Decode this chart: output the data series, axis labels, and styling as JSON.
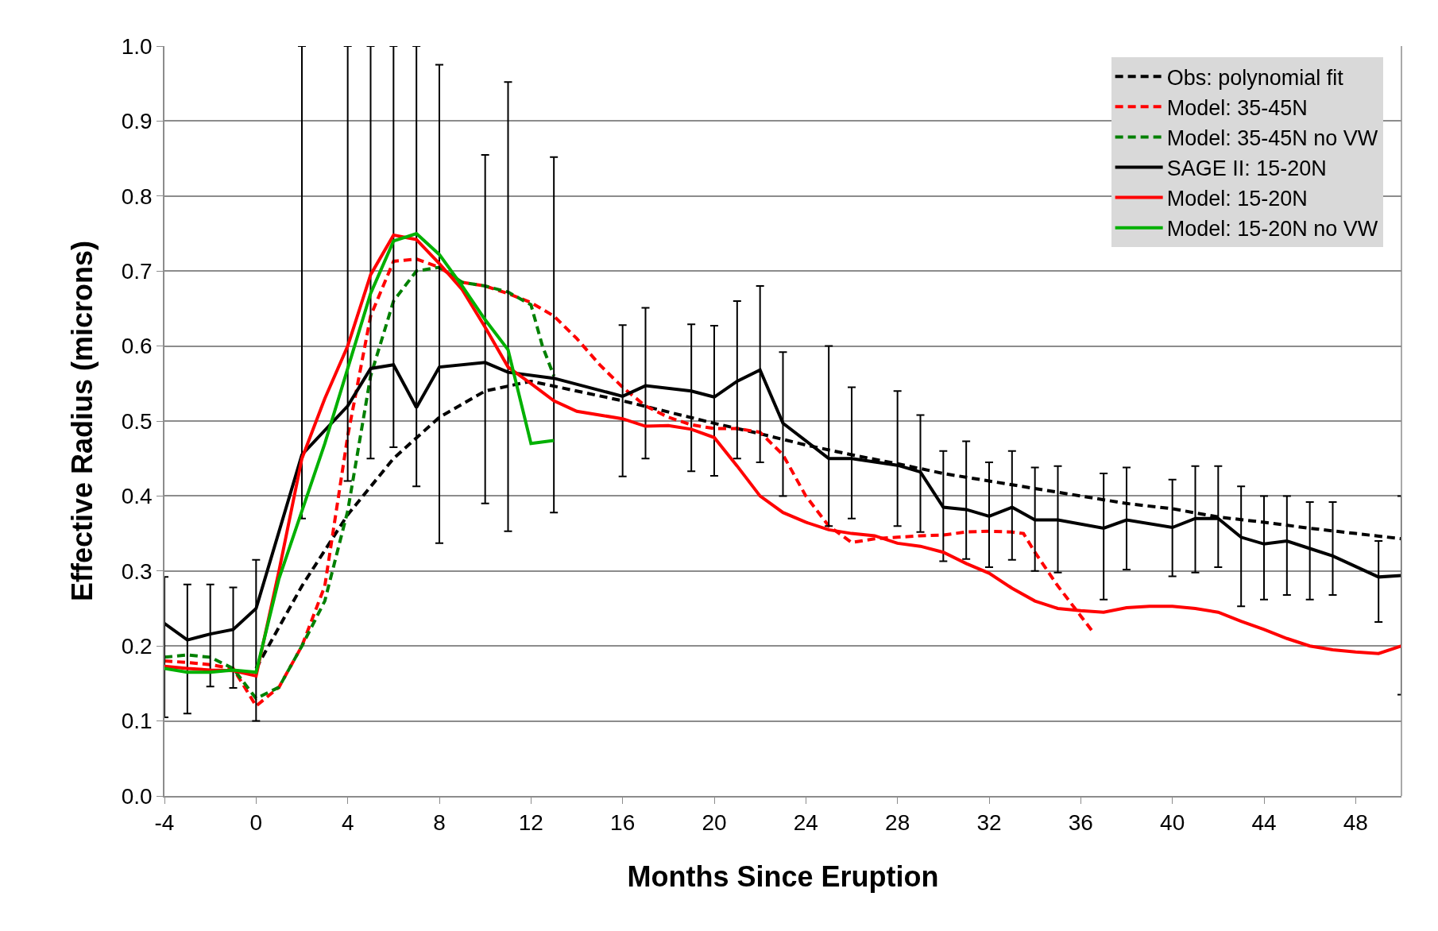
{
  "chart_data": {
    "type": "line",
    "xlabel": "Months Since Eruption",
    "ylabel": "Effective Radius (microns)",
    "xlim": [
      -4,
      50
    ],
    "xticks": [
      -4,
      0,
      4,
      8,
      12,
      16,
      20,
      24,
      28,
      32,
      36,
      40,
      44,
      48
    ],
    "ylim": [
      0,
      1.0
    ],
    "yticks": [
      {
        "value": 0,
        "label": "0.0"
      },
      0.1,
      0.2,
      0.3,
      0.4,
      0.5,
      0.6,
      0.7,
      0.8,
      0.9,
      {
        "value": 1.0,
        "label": "1.0"
      }
    ],
    "grid": "y",
    "legend": "top right",
    "marker": "none",
    "series": [
      {
        "name": "Obs: polynomial fit",
        "color": "#000000",
        "line_style": "dashed",
        "x": [
          0,
          2,
          4,
          6,
          8,
          10,
          12,
          14,
          16,
          18,
          20,
          22,
          24,
          26,
          28,
          30,
          32,
          34,
          36,
          38,
          40,
          42,
          44,
          46,
          48,
          50
        ],
        "values": [
          0.17,
          0.28,
          0.375,
          0.45,
          0.505,
          0.54,
          0.553,
          0.54,
          0.527,
          0.512,
          0.497,
          0.483,
          0.468,
          0.455,
          0.443,
          0.43,
          0.42,
          0.41,
          0.4,
          0.39,
          0.383,
          0.372,
          0.365,
          0.357,
          0.35,
          0.343
        ]
      },
      {
        "name": "Model: 35-45N",
        "color": "#ff0000",
        "line_style": "dashed",
        "x": [
          -4,
          -3,
          -2,
          -1,
          0,
          1,
          2,
          3,
          4,
          5,
          6,
          7,
          8,
          9,
          10,
          11,
          12,
          13,
          14,
          15,
          16,
          17,
          18,
          19,
          20,
          21,
          22,
          23,
          24,
          25,
          26,
          27,
          28,
          29,
          30,
          31,
          32,
          33,
          33.5,
          34,
          35,
          36,
          36.5
        ],
        "values": [
          0.18,
          0.178,
          0.175,
          0.17,
          0.12,
          0.145,
          0.2,
          0.28,
          0.48,
          0.64,
          0.713,
          0.716,
          0.705,
          0.685,
          0.68,
          0.67,
          0.658,
          0.64,
          0.61,
          0.575,
          0.545,
          0.52,
          0.505,
          0.495,
          0.49,
          0.49,
          0.485,
          0.455,
          0.4,
          0.36,
          0.338,
          0.343,
          0.345,
          0.347,
          0.348,
          0.352,
          0.353,
          0.352,
          0.35,
          0.325,
          0.28,
          0.24,
          0.22
        ]
      },
      {
        "name": "Model: 35-45N no VW",
        "color": "#008000",
        "line_style": "dashed",
        "x": [
          -4,
          -3,
          -2,
          -1,
          0,
          1,
          2,
          3,
          4,
          5,
          6,
          7,
          8,
          9,
          10,
          11,
          12,
          12.5,
          13
        ],
        "values": [
          0.185,
          0.188,
          0.185,
          0.17,
          0.13,
          0.145,
          0.2,
          0.26,
          0.38,
          0.56,
          0.66,
          0.7,
          0.705,
          0.685,
          0.68,
          0.672,
          0.655,
          0.6,
          0.56
        ]
      },
      {
        "name": "SAGE II: 15-20N",
        "color": "#000000",
        "line_style": "solid",
        "x": [
          -4,
          -3,
          -2,
          -1,
          0,
          2,
          4,
          5,
          6,
          7,
          8,
          10,
          11,
          13,
          16,
          17,
          19,
          20,
          21,
          22,
          23,
          25,
          26,
          28,
          29,
          30,
          31,
          32,
          33,
          34,
          35,
          37,
          38,
          40,
          41,
          42,
          43,
          44,
          45,
          46,
          47,
          49,
          50
        ],
        "values": [
          0.23,
          0.208,
          0.216,
          0.222,
          0.25,
          0.455,
          0.52,
          0.57,
          0.575,
          0.518,
          0.572,
          0.578,
          0.565,
          0.557,
          0.533,
          0.547,
          0.54,
          0.532,
          0.553,
          0.568,
          0.497,
          0.45,
          0.45,
          0.441,
          0.432,
          0.385,
          0.382,
          0.373,
          0.385,
          0.368,
          0.368,
          0.357,
          0.368,
          0.358,
          0.37,
          0.37,
          0.345,
          0.336,
          0.34,
          0.33,
          0.32,
          0.292,
          0.294
        ],
        "errors": [
          [
            0.105,
            0.292
          ],
          [
            0.11,
            0.282
          ],
          [
            0.146,
            0.282
          ],
          [
            0.144,
            0.278
          ],
          [
            0.1,
            0.315
          ],
          [
            0.37,
            1.0
          ],
          [
            0.42,
            1.0
          ],
          [
            0.45,
            1.0
          ],
          [
            0.465,
            1.0
          ],
          [
            0.413,
            1.0
          ],
          [
            0.337,
            0.975
          ],
          [
            0.39,
            0.855
          ],
          [
            0.353,
            0.952
          ],
          [
            0.378,
            0.852
          ],
          [
            0.426,
            0.628
          ],
          [
            0.45,
            0.651
          ],
          [
            0.433,
            0.629
          ],
          [
            0.427,
            0.627
          ],
          [
            0.45,
            0.66
          ],
          [
            0.445,
            0.68
          ],
          [
            0.4,
            0.592
          ],
          [
            0.36,
            0.6
          ],
          [
            0.37,
            0.545
          ],
          [
            0.36,
            0.54
          ],
          [
            0.352,
            0.508
          ],
          [
            0.313,
            0.46
          ],
          [
            0.316,
            0.473
          ],
          [
            0.305,
            0.445
          ],
          [
            0.315,
            0.46
          ],
          [
            0.3,
            0.438
          ],
          [
            0.298,
            0.44
          ],
          [
            0.262,
            0.43
          ],
          [
            0.302,
            0.438
          ],
          [
            0.293,
            0.422
          ],
          [
            0.298,
            0.44
          ],
          [
            0.305,
            0.44
          ],
          [
            0.253,
            0.413
          ],
          [
            0.262,
            0.4
          ],
          [
            0.268,
            0.4
          ],
          [
            0.262,
            0.392
          ],
          [
            0.268,
            0.392
          ],
          [
            0.232,
            0.34
          ],
          [
            0.135,
            0.4
          ]
        ]
      },
      {
        "name": "Model: 15-20N",
        "color": "#ff0000",
        "line_style": "solid",
        "x": [
          -4,
          -3,
          -2,
          -1,
          0,
          1,
          2,
          3,
          4,
          5,
          6,
          7,
          8,
          9,
          10,
          11,
          12,
          13,
          14,
          15,
          16,
          17,
          18,
          19,
          20,
          21,
          22,
          23,
          24,
          25,
          26,
          27,
          28,
          29,
          30,
          31,
          32,
          33,
          34,
          35,
          36,
          37,
          38,
          39,
          40,
          41,
          42,
          43,
          44,
          45,
          46,
          47,
          48,
          49,
          50
        ],
        "values": [
          0.173,
          0.17,
          0.168,
          0.167,
          0.16,
          0.3,
          0.45,
          0.53,
          0.6,
          0.695,
          0.748,
          0.742,
          0.71,
          0.675,
          0.625,
          0.572,
          0.55,
          0.527,
          0.513,
          0.508,
          0.503,
          0.493,
          0.494,
          0.489,
          0.478,
          0.44,
          0.4,
          0.378,
          0.365,
          0.355,
          0.35,
          0.347,
          0.337,
          0.333,
          0.325,
          0.31,
          0.297,
          0.277,
          0.26,
          0.25,
          0.247,
          0.245,
          0.251,
          0.253,
          0.253,
          0.25,
          0.245,
          0.233,
          0.222,
          0.21,
          0.2,
          0.195,
          0.192,
          0.19,
          0.2
        ]
      },
      {
        "name": "Model: 15-20N no VW",
        "color": "#00b000",
        "line_style": "solid",
        "x": [
          -4,
          -3,
          -2,
          -1,
          0,
          1,
          2,
          3,
          4,
          5,
          6,
          7,
          8,
          9,
          10,
          11,
          12,
          13
        ],
        "values": [
          0.17,
          0.165,
          0.165,
          0.168,
          0.165,
          0.29,
          0.38,
          0.47,
          0.57,
          0.67,
          0.74,
          0.75,
          0.722,
          0.68,
          0.635,
          0.595,
          0.47,
          0.474
        ]
      }
    ]
  }
}
